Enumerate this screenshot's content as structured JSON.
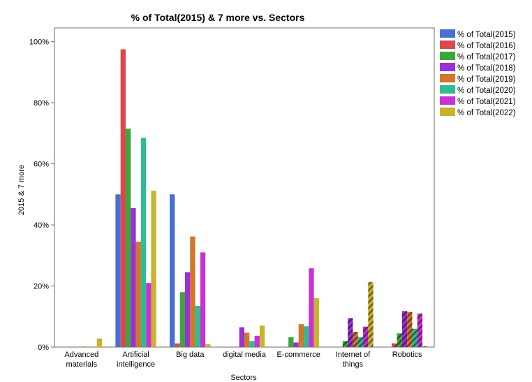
{
  "chart_data": {
    "type": "bar",
    "title": "% of Total(2015) & 7 more vs. Sectors",
    "xlabel": "Sectors",
    "ylabel": "2015 & 7 more",
    "ylim": [
      0,
      1.0
    ],
    "yticks": [
      "0%",
      "20%",
      "40%",
      "60%",
      "80%",
      "100%"
    ],
    "ytick_values": [
      0,
      0.2,
      0.4,
      0.6,
      0.8,
      1.0
    ],
    "grid": false,
    "legend_position": "top-right",
    "categories": [
      [
        "Advanced",
        "materials"
      ],
      [
        "Artificial",
        "intelligence"
      ],
      [
        "Big data"
      ],
      [
        "digital media"
      ],
      [
        "E-commerce"
      ],
      [
        "Internet of",
        "things"
      ],
      [
        "Robotics"
      ]
    ],
    "hatched_categories": [
      5,
      6
    ],
    "series": [
      {
        "name": "% of Total(2015)",
        "color": "#4a6fd4",
        "values": [
          0,
          0.5,
          0.5,
          0,
          0,
          0,
          0
        ]
      },
      {
        "name": "% of Total(2016)",
        "color": "#d9484f",
        "values": [
          0,
          0.975,
          0.012,
          0,
          0,
          0,
          0.012
        ]
      },
      {
        "name": "% of Total(2017)",
        "color": "#3ca63c",
        "values": [
          0,
          0.715,
          0.18,
          0,
          0.032,
          0.02,
          0.045
        ]
      },
      {
        "name": "% of Total(2018)",
        "color": "#9a30d6",
        "values": [
          0,
          0.455,
          0.245,
          0.065,
          0.015,
          0.095,
          0.118
        ]
      },
      {
        "name": "% of Total(2019)",
        "color": "#d2762a",
        "values": [
          0.002,
          0.345,
          0.362,
          0.047,
          0.075,
          0.05,
          0.115
        ]
      },
      {
        "name": "% of Total(2020)",
        "color": "#2ebc90",
        "values": [
          0,
          0.685,
          0.135,
          0.02,
          0.068,
          0.032,
          0.06
        ]
      },
      {
        "name": "% of Total(2021)",
        "color": "#c832d2",
        "values": [
          0,
          0.21,
          0.31,
          0.037,
          0.258,
          0.067,
          0.11
        ]
      },
      {
        "name": "% of Total(2022)",
        "color": "#c9b32a",
        "values": [
          0.028,
          0.512,
          0.01,
          0.07,
          0.16,
          0.213,
          0.003
        ]
      }
    ]
  }
}
